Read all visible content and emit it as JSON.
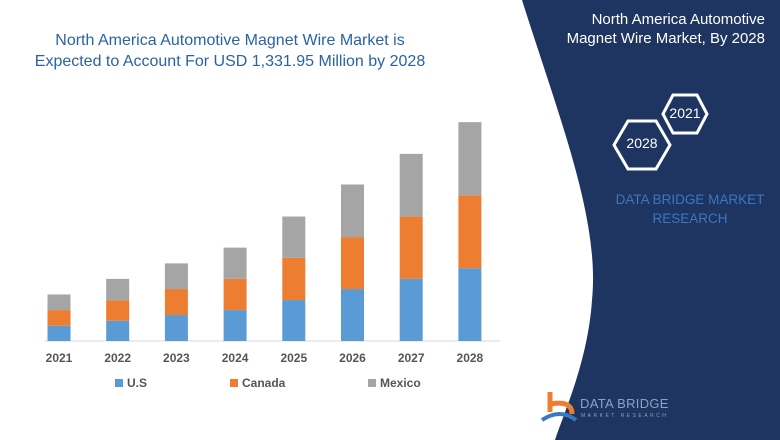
{
  "header": {
    "title": "North America Automotive Magnet Wire Market is Expected to Account For USD 1,331.95 Million by 2028"
  },
  "side_panel": {
    "title": "North America Automotive Magnet Wire Market, By 2028",
    "hex_1": "2021",
    "hex_2": "2028",
    "brand_text": "DATA BRIDGE MARKET RESEARCH",
    "logo_text": "DATA BRIDGE",
    "logo_subtext": "MARKET RESEARCH",
    "panel_color": "#1e3461"
  },
  "chart_data": {
    "type": "bar",
    "stacked": true,
    "categories": [
      "2021",
      "2022",
      "2023",
      "2024",
      "2025",
      "2026",
      "2027",
      "2028"
    ],
    "series": [
      {
        "name": "U.S",
        "color": "#5b9bd5",
        "values": [
          93,
          123,
          158,
          188,
          249,
          316,
          378,
          443
        ]
      },
      {
        "name": "Canada",
        "color": "#ed7d31",
        "values": [
          95,
          125,
          158,
          190,
          257,
          316,
          380,
          443
        ]
      },
      {
        "name": "Mexico",
        "color": "#a5a5a5",
        "values": [
          95,
          130,
          156,
          190,
          251,
          320,
          380,
          445
        ]
      }
    ],
    "ylim": [
      0,
      1400
    ],
    "grid": false,
    "legend": "bottom",
    "xlabel": "",
    "ylabel": ""
  }
}
